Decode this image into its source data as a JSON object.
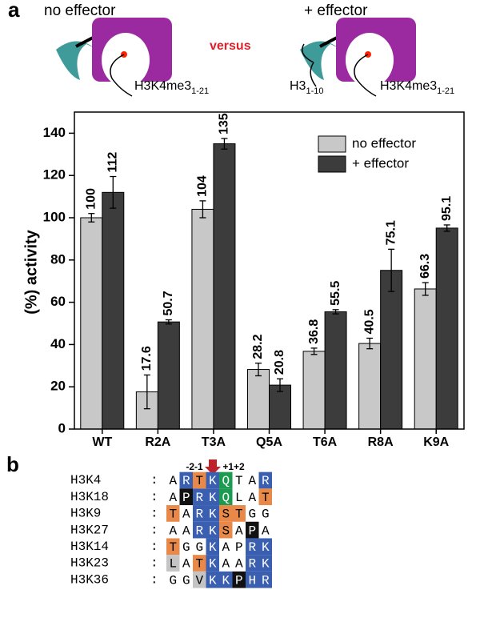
{
  "diagram": {
    "panel": "a",
    "left_title": "no effector",
    "right_title": "+ effector",
    "versus": "versus",
    "substrate": {
      "main": "H3K4me3",
      "sub": "1-21"
    },
    "effector": {
      "main": "H3",
      "sub": "1-10"
    }
  },
  "chart_data": {
    "type": "bar",
    "ylabel": "(%) activity",
    "categories": [
      "WT",
      "R2A",
      "T3A",
      "Q5A",
      "T6A",
      "R8A",
      "K9A"
    ],
    "series": [
      {
        "name": "no effector",
        "color": "#c8c8c8",
        "values": [
          100,
          17.6,
          104,
          28.2,
          36.8,
          40.5,
          66.3
        ],
        "errors": [
          2,
          8,
          4,
          3,
          1.5,
          2.5,
          3
        ]
      },
      {
        "name": "+ effector",
        "color": "#3c3c3c",
        "values": [
          112,
          50.7,
          135,
          20.8,
          55.5,
          75.1,
          95.1
        ],
        "errors": [
          7.5,
          1,
          2.5,
          3,
          1,
          10,
          1.5
        ]
      }
    ],
    "ylim": [
      0,
      150
    ],
    "yticks": [
      0,
      20,
      40,
      60,
      80,
      100,
      120,
      140
    ],
    "legend": "upper right"
  },
  "alignment": {
    "panel": "b",
    "left_positions": "-2-1",
    "right_positions": "+1+2",
    "separator": ":",
    "rows": [
      {
        "name": "H3K4",
        "residues": [
          "A",
          "R",
          "T",
          "K",
          "Q",
          "T",
          "A",
          "R"
        ],
        "colors": [
          null,
          "blue",
          "orange",
          "blue",
          "green",
          null,
          null,
          "blue"
        ]
      },
      {
        "name": "H3K18",
        "residues": [
          "A",
          "P",
          "R",
          "K",
          "Q",
          "L",
          "A",
          "T"
        ],
        "colors": [
          null,
          "black",
          "blue",
          "blue",
          "green",
          null,
          null,
          "orange"
        ]
      },
      {
        "name": "H3K9",
        "residues": [
          "T",
          "A",
          "R",
          "K",
          "S",
          "T",
          "G",
          "G"
        ],
        "colors": [
          "orange",
          null,
          "blue",
          "blue",
          "orange",
          "orange",
          null,
          null
        ]
      },
      {
        "name": "H3K27",
        "residues": [
          "A",
          "A",
          "R",
          "K",
          "S",
          "A",
          "P",
          "A"
        ],
        "colors": [
          null,
          null,
          "blue",
          "blue",
          "orange",
          null,
          "black",
          null
        ]
      },
      {
        "name": "H3K14",
        "residues": [
          "T",
          "G",
          "G",
          "K",
          "A",
          "P",
          "R",
          "K"
        ],
        "colors": [
          "orange",
          null,
          null,
          "blue",
          null,
          null,
          "blue",
          "blue"
        ]
      },
      {
        "name": "H3K23",
        "residues": [
          "L",
          "A",
          "T",
          "K",
          "A",
          "A",
          "R",
          "K"
        ],
        "colors": [
          "gray",
          null,
          "orange",
          "blue",
          null,
          null,
          "blue",
          "blue"
        ]
      },
      {
        "name": "H3K36",
        "residues": [
          "G",
          "G",
          "V",
          "K",
          "K",
          "P",
          "H",
          "R"
        ],
        "colors": [
          null,
          null,
          "gray",
          "blue",
          "blue",
          "black",
          "blue",
          "blue"
        ]
      }
    ]
  }
}
